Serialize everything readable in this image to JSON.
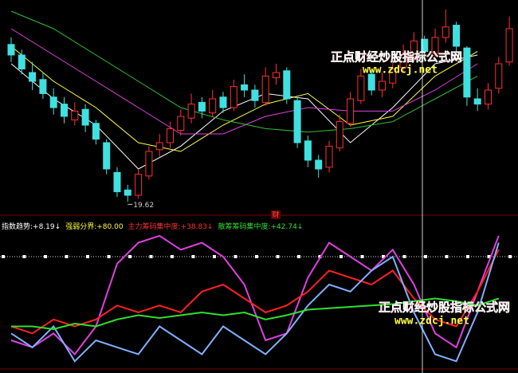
{
  "chart_data": [
    {
      "type": "candlestick",
      "ylim": [
        19,
        31
      ],
      "candles": [
        [
          28.6,
          28.0,
          29.0,
          27.6
        ],
        [
          28.0,
          27.2,
          28.3,
          26.9
        ],
        [
          27.0,
          26.5,
          27.6,
          26.0
        ],
        [
          26.6,
          25.8,
          27.0,
          25.5
        ],
        [
          25.6,
          25.0,
          26.1,
          24.6
        ],
        [
          25.2,
          24.5,
          25.6,
          24.1
        ],
        [
          24.3,
          24.8,
          25.3,
          24.0
        ],
        [
          24.9,
          24.0,
          25.2,
          23.6
        ],
        [
          24.1,
          23.2,
          24.3,
          22.9
        ],
        [
          23.0,
          21.5,
          23.2,
          21.2
        ],
        [
          21.3,
          20.2,
          21.6,
          19.9
        ],
        [
          20.3,
          20.0,
          20.6,
          19.62
        ],
        [
          20.0,
          21.2,
          21.5,
          19.8
        ],
        [
          21.1,
          22.5,
          22.8,
          20.9
        ],
        [
          22.6,
          23.0,
          23.5,
          22.2
        ],
        [
          23.0,
          23.8,
          24.2,
          22.7
        ],
        [
          23.7,
          24.5,
          24.9,
          23.4
        ],
        [
          24.4,
          25.2,
          25.8,
          24.1
        ],
        [
          25.3,
          24.8,
          25.6,
          24.4
        ],
        [
          24.7,
          25.5,
          26.0,
          24.5
        ],
        [
          25.6,
          25.0,
          25.9,
          24.7
        ],
        [
          25.0,
          26.2,
          26.6,
          24.8
        ],
        [
          26.3,
          26.0,
          26.9,
          25.6
        ],
        [
          26.0,
          25.4,
          26.3,
          25.0
        ],
        [
          25.3,
          26.8,
          27.3,
          25.1
        ],
        [
          26.7,
          27.0,
          27.5,
          26.3
        ],
        [
          27.1,
          25.5,
          27.3,
          25.2
        ],
        [
          25.4,
          23.0,
          25.6,
          22.7
        ],
        [
          23.1,
          22.0,
          23.4,
          21.6
        ],
        [
          22.0,
          21.5,
          22.3,
          21.0
        ],
        [
          21.6,
          22.8,
          23.1,
          21.3
        ],
        [
          22.7,
          24.2,
          24.6,
          22.5
        ],
        [
          24.1,
          25.5,
          25.9,
          23.9
        ],
        [
          25.4,
          26.8,
          27.2,
          25.2
        ],
        [
          26.9,
          26.0,
          27.1,
          25.7
        ],
        [
          26.0,
          26.5,
          27.0,
          25.6
        ],
        [
          26.4,
          27.2,
          27.8,
          26.1
        ],
        [
          27.3,
          28.0,
          28.6,
          27.0
        ],
        [
          27.9,
          28.8,
          29.3,
          27.6
        ],
        [
          28.9,
          28.2,
          29.1,
          27.8
        ],
        [
          28.1,
          29.0,
          29.5,
          27.9
        ],
        [
          29.0,
          29.6,
          30.6,
          28.7
        ],
        [
          29.7,
          28.5,
          29.9,
          28.2
        ],
        [
          28.4,
          25.6,
          28.5,
          25.1
        ],
        [
          25.5,
          25.2,
          26.1,
          24.8
        ],
        [
          25.2,
          26.0,
          26.4,
          24.9
        ],
        [
          26.1,
          27.5,
          27.9,
          25.8
        ],
        [
          27.6,
          29.5,
          30.2,
          27.4
        ]
      ],
      "up_color": "#ff3030",
      "down_color": "#40e0e0",
      "low_label_index": 11,
      "x": [
        0,
        4,
        8,
        12,
        16,
        20,
        24,
        28,
        32,
        36,
        40,
        44
      ],
      "series": [
        {
          "color": "#ffffff",
          "values": [
            27.5,
            25.5,
            24.0,
            21.5,
            22.8,
            24.8,
            25.8,
            25.5,
            23.0,
            25.0,
            27.5,
            28.0
          ]
        },
        {
          "color": "#ffff40",
          "values": [
            28.5,
            26.5,
            25.0,
            23.0,
            22.5,
            24.0,
            25.2,
            25.8,
            24.0,
            24.5,
            26.8,
            28.2
          ]
        },
        {
          "color": "#e040e0",
          "values": [
            29.5,
            28.0,
            26.5,
            25.0,
            23.5,
            23.5,
            24.5,
            25.0,
            24.8,
            24.8,
            26.0,
            27.5
          ]
        },
        {
          "color": "#30c030",
          "values": [
            30.5,
            29.5,
            28.0,
            26.5,
            25.0,
            24.3,
            23.8,
            23.6,
            23.8,
            24.2,
            25.5,
            26.8
          ]
        }
      ],
      "marker": "财"
    },
    {
      "type": "line",
      "ylim": [
        0,
        96
      ],
      "header": [
        {
          "label": "指数趋势:",
          "value": 8.19,
          "value_label": "+8.19",
          "arrow": "↓",
          "color": "#ffffff"
        },
        {
          "label": "强弱分界:",
          "value": 80,
          "value_label": "+80.00",
          "color": "#ffff40"
        },
        {
          "label": "主力筹码集中度:",
          "value": 38.83,
          "value_label": "+38.83",
          "arrow": "↓",
          "color": "#ff3030"
        },
        {
          "label": "散筹筹码集中度:",
          "value": 42.74,
          "value_label": "+42.74",
          "arrow": "↓",
          "color": "#30e030"
        }
      ],
      "x": [
        0,
        2,
        4,
        6,
        8,
        10,
        12,
        14,
        16,
        18,
        20,
        22,
        24,
        26,
        28,
        30,
        32,
        34,
        36,
        38,
        40,
        42,
        44,
        46
      ],
      "series": [
        {
          "color": "#e040e0",
          "values": [
            20,
            15,
            25,
            10,
            30,
            75,
            90,
            95,
            85,
            90,
            80,
            60,
            20,
            25,
            65,
            90,
            80,
            70,
            85,
            60,
            25,
            15,
            55,
            95
          ]
        },
        {
          "color": "#ff2020",
          "values": [
            30,
            25,
            35,
            30,
            35,
            45,
            40,
            45,
            40,
            55,
            60,
            50,
            40,
            45,
            55,
            70,
            65,
            60,
            70,
            50,
            35,
            30,
            55,
            85
          ]
        },
        {
          "color": "#80b0ff",
          "values": [
            25,
            15,
            30,
            5,
            20,
            15,
            10,
            30,
            20,
            10,
            30,
            20,
            10,
            25,
            45,
            60,
            55,
            70,
            80,
            40,
            10,
            5,
            40,
            90
          ]
        },
        {
          "color": "#30e030",
          "values": [
            30,
            30,
            28,
            32,
            30,
            35,
            38,
            36,
            38,
            40,
            38,
            40,
            35,
            38,
            42,
            43,
            44,
            45,
            46,
            48,
            50,
            48,
            45,
            50
          ]
        }
      ]
    }
  ],
  "watermarks": [
    {
      "title": "正点财经炒股指标公式网",
      "url": "www.zdcj.net"
    },
    {
      "title": "正点财经炒股指标公式网",
      "url": "www.zdcj.net"
    }
  ]
}
